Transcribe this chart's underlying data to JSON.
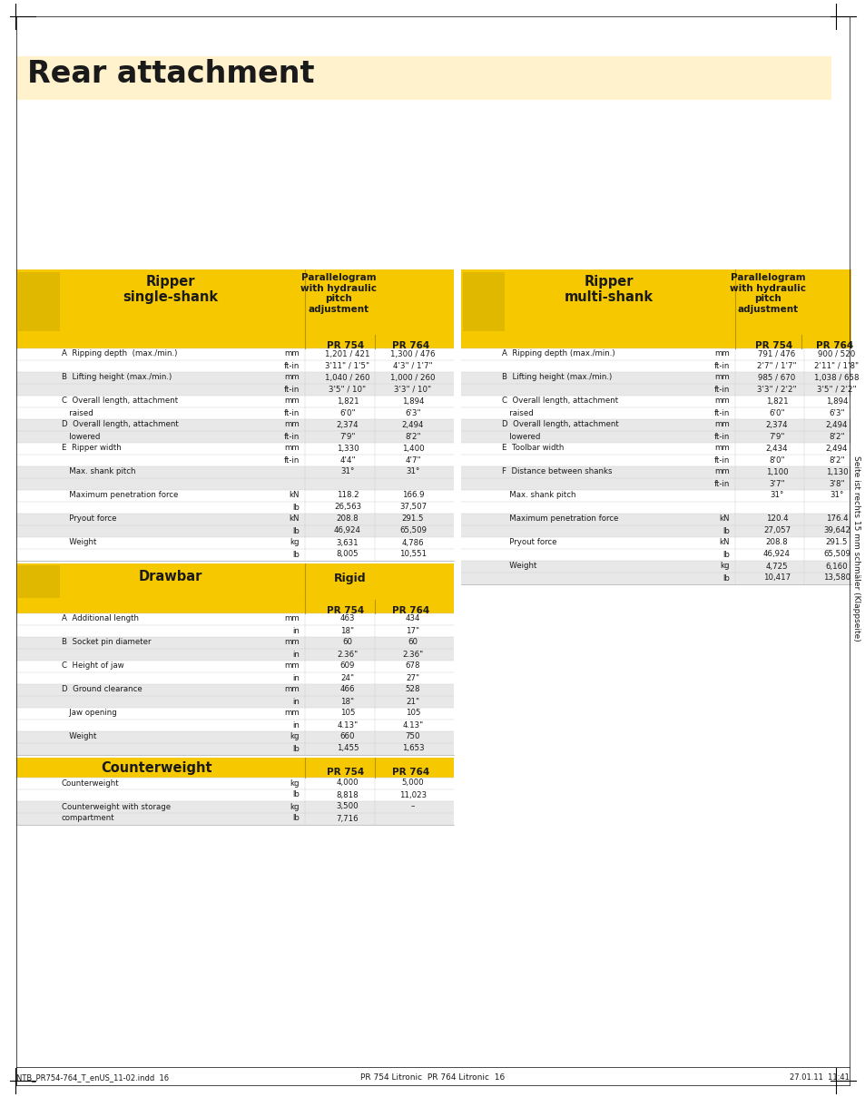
{
  "title": "Rear attachment",
  "title_bg": "#FFF2CC",
  "page_bg": "#ffffff",
  "yellow": "#F5C800",
  "light_yellow": "#FFF2CC",
  "dark": "#1a1a1a",
  "sidebar_text": "Seite ist rechts 15 mm schmäler (Klappseite)",
  "footer_left": "NTB_PR754-764_T_enUS_11-02.indd  16",
  "footer_right": "27.01.11  11:41",
  "footer_center": "PR 754 Litronic  PR 764 Litronic  16",
  "ripper_single": {
    "header": "Ripper\nsingle-shank",
    "subheader": "Parallelogram\nwith hydraulic\npitch\nadjustment",
    "col1": "PR 754",
    "col2": "PR 764",
    "rows": [
      {
        "label": "A  Ripping depth  (max./min.)",
        "unit": "mm",
        "v1": "1,201 / 421",
        "v2": "1,300 / 476",
        "shade": false
      },
      {
        "label": "",
        "unit": "ft-in",
        "v1": "3'11\" / 1'5\"",
        "v2": "4'3\" / 1'7\"",
        "shade": false
      },
      {
        "label": "B  Lifting height (max./min.)",
        "unit": "mm",
        "v1": "1,040 / 260",
        "v2": "1,000 / 260",
        "shade": true
      },
      {
        "label": "",
        "unit": "ft-in",
        "v1": "3'5\" / 10\"",
        "v2": "3'3\" / 10\"",
        "shade": true
      },
      {
        "label": "C  Overall length, attachment",
        "unit": "mm",
        "v1": "1,821",
        "v2": "1,894",
        "shade": false
      },
      {
        "label": "   raised",
        "unit": "ft-in",
        "v1": "6'0\"",
        "v2": "6'3\"",
        "shade": false
      },
      {
        "label": "D  Overall length, attachment",
        "unit": "mm",
        "v1": "2,374",
        "v2": "2,494",
        "shade": true
      },
      {
        "label": "   lowered",
        "unit": "ft-in",
        "v1": "7'9\"",
        "v2": "8'2\"",
        "shade": true
      },
      {
        "label": "E  Ripper width",
        "unit": "mm",
        "v1": "1,330",
        "v2": "1,400",
        "shade": false
      },
      {
        "label": "",
        "unit": "ft-in",
        "v1": "4'4\"",
        "v2": "4'7\"",
        "shade": false
      },
      {
        "label": "   Max. shank pitch",
        "unit": "",
        "v1": "31°",
        "v2": "31°",
        "shade": true
      },
      {
        "label": "",
        "unit": "",
        "v1": "",
        "v2": "",
        "shade": true
      },
      {
        "label": "   Maximum penetration force",
        "unit": "kN",
        "v1": "118.2",
        "v2": "166.9",
        "shade": false
      },
      {
        "label": "",
        "unit": "lb",
        "v1": "26,563",
        "v2": "37,507",
        "shade": false
      },
      {
        "label": "   Pryout force",
        "unit": "kN",
        "v1": "208.8",
        "v2": "291.5",
        "shade": true
      },
      {
        "label": "",
        "unit": "lb",
        "v1": "46,924",
        "v2": "65,509",
        "shade": true
      },
      {
        "label": "   Weight",
        "unit": "kg",
        "v1": "3,631",
        "v2": "4,786",
        "shade": false
      },
      {
        "label": "",
        "unit": "lb",
        "v1": "8,005",
        "v2": "10,551",
        "shade": false
      }
    ]
  },
  "ripper_multi": {
    "header": "Ripper\nmulti-shank",
    "subheader": "Parallelogram\nwith hydraulic\npitch\nadjustment",
    "col1": "PR 754",
    "col2": "PR 764",
    "rows": [
      {
        "label": "A  Ripping depth (max./min.)",
        "unit": "mm",
        "v1": "791 / 476",
        "v2": "900 / 520",
        "shade": false
      },
      {
        "label": "",
        "unit": "ft-in",
        "v1": "2'7\" / 1'7\"",
        "v2": "2'11\" / 1'8\"",
        "shade": false
      },
      {
        "label": "B  Lifting height (max./min.)",
        "unit": "mm",
        "v1": "985 / 670",
        "v2": "1,038 / 658",
        "shade": true
      },
      {
        "label": "",
        "unit": "ft-in",
        "v1": "3'3\" / 2'2\"",
        "v2": "3'5\" / 2'2\"",
        "shade": true
      },
      {
        "label": "C  Overall length, attachment",
        "unit": "mm",
        "v1": "1,821",
        "v2": "1,894",
        "shade": false
      },
      {
        "label": "   raised",
        "unit": "ft-in",
        "v1": "6'0\"",
        "v2": "6'3\"",
        "shade": false
      },
      {
        "label": "D  Overall length, attachment",
        "unit": "mm",
        "v1": "2,374",
        "v2": "2,494",
        "shade": true
      },
      {
        "label": "   lowered",
        "unit": "ft-in",
        "v1": "7'9\"",
        "v2": "8'2\"",
        "shade": true
      },
      {
        "label": "E  Toolbar width",
        "unit": "mm",
        "v1": "2,434",
        "v2": "2,494",
        "shade": false
      },
      {
        "label": "",
        "unit": "ft-in",
        "v1": "8'0\"",
        "v2": "8'2\"",
        "shade": false
      },
      {
        "label": "F  Distance between shanks",
        "unit": "mm",
        "v1": "1,100",
        "v2": "1,130",
        "shade": true
      },
      {
        "label": "",
        "unit": "ft-in",
        "v1": "3'7\"",
        "v2": "3'8\"",
        "shade": true
      },
      {
        "label": "   Max. shank pitch",
        "unit": "",
        "v1": "31°",
        "v2": "31°",
        "shade": false
      },
      {
        "label": "",
        "unit": "",
        "v1": "",
        "v2": "",
        "shade": false
      },
      {
        "label": "   Maximum penetration force",
        "unit": "kN",
        "v1": "120.4",
        "v2": "176.4",
        "shade": true
      },
      {
        "label": "",
        "unit": "lb",
        "v1": "27,057",
        "v2": "39,642",
        "shade": true
      },
      {
        "label": "   Pryout force",
        "unit": "kN",
        "v1": "208.8",
        "v2": "291.5",
        "shade": false
      },
      {
        "label": "",
        "unit": "lb",
        "v1": "46,924",
        "v2": "65,509",
        "shade": false
      },
      {
        "label": "   Weight",
        "unit": "kg",
        "v1": "4,725",
        "v2": "6,160",
        "shade": true
      },
      {
        "label": "",
        "unit": "lb",
        "v1": "10,417",
        "v2": "13,580",
        "shade": true
      }
    ]
  },
  "drawbar": {
    "header": "Drawbar",
    "subheader": "Rigid",
    "col1": "PR 754",
    "col2": "PR 764",
    "rows": [
      {
        "label": "A  Additional length",
        "unit": "mm",
        "v1": "463",
        "v2": "434",
        "shade": false
      },
      {
        "label": "",
        "unit": "in",
        "v1": "18\"",
        "v2": "17\"",
        "shade": false
      },
      {
        "label": "B  Socket pin diameter",
        "unit": "mm",
        "v1": "60",
        "v2": "60",
        "shade": true
      },
      {
        "label": "",
        "unit": "in",
        "v1": "2.36\"",
        "v2": "2.36\"",
        "shade": true
      },
      {
        "label": "C  Height of jaw",
        "unit": "mm",
        "v1": "609",
        "v2": "678",
        "shade": false
      },
      {
        "label": "",
        "unit": "in",
        "v1": "24\"",
        "v2": "27\"",
        "shade": false
      },
      {
        "label": "D  Ground clearance",
        "unit": "mm",
        "v1": "466",
        "v2": "528",
        "shade": true
      },
      {
        "label": "",
        "unit": "in",
        "v1": "18\"",
        "v2": "21\"",
        "shade": true
      },
      {
        "label": "   Jaw opening",
        "unit": "mm",
        "v1": "105",
        "v2": "105",
        "shade": false
      },
      {
        "label": "",
        "unit": "in",
        "v1": "4.13\"",
        "v2": "4.13\"",
        "shade": false
      },
      {
        "label": "   Weight",
        "unit": "kg",
        "v1": "660",
        "v2": "750",
        "shade": true
      },
      {
        "label": "",
        "unit": "lb",
        "v1": "1,455",
        "v2": "1,653",
        "shade": true
      }
    ]
  },
  "counterweight": {
    "header": "Counterweight",
    "col1": "PR 754",
    "col2": "PR 764",
    "rows": [
      {
        "label": "Counterweight",
        "unit": "kg",
        "v1": "4,000",
        "v2": "5,000",
        "shade": false
      },
      {
        "label": "",
        "unit": "lb",
        "v1": "8,818",
        "v2": "11,023",
        "shade": false
      },
      {
        "label": "Counterweight with storage",
        "unit": "kg",
        "v1": "3,500",
        "v2": "–",
        "shade": true
      },
      {
        "label": "compartment",
        "unit": "lb",
        "v1": "7,716",
        "v2": "",
        "shade": true
      }
    ]
  }
}
